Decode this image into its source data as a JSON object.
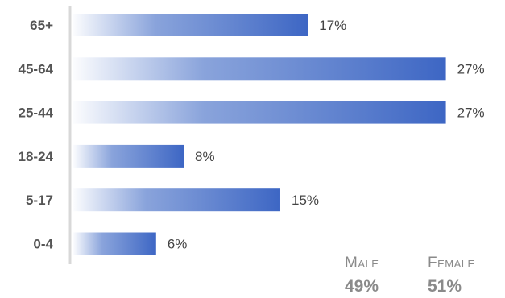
{
  "chart_data": {
    "type": "bar",
    "orientation": "horizontal",
    "categories": [
      "65+",
      "45-64",
      "25-44",
      "18-24",
      "5-17",
      "0-4"
    ],
    "values": [
      17,
      27,
      27,
      8,
      15,
      6
    ],
    "value_labels": [
      "17%",
      "27%",
      "27%",
      "8%",
      "15%",
      "6%"
    ],
    "xlim": [
      0,
      27.2
    ],
    "color": "#4a72c8",
    "grid": false
  },
  "legend": {
    "male": {
      "label": "Male",
      "value": "49%"
    },
    "female": {
      "label": "Female",
      "value": "51%"
    }
  }
}
